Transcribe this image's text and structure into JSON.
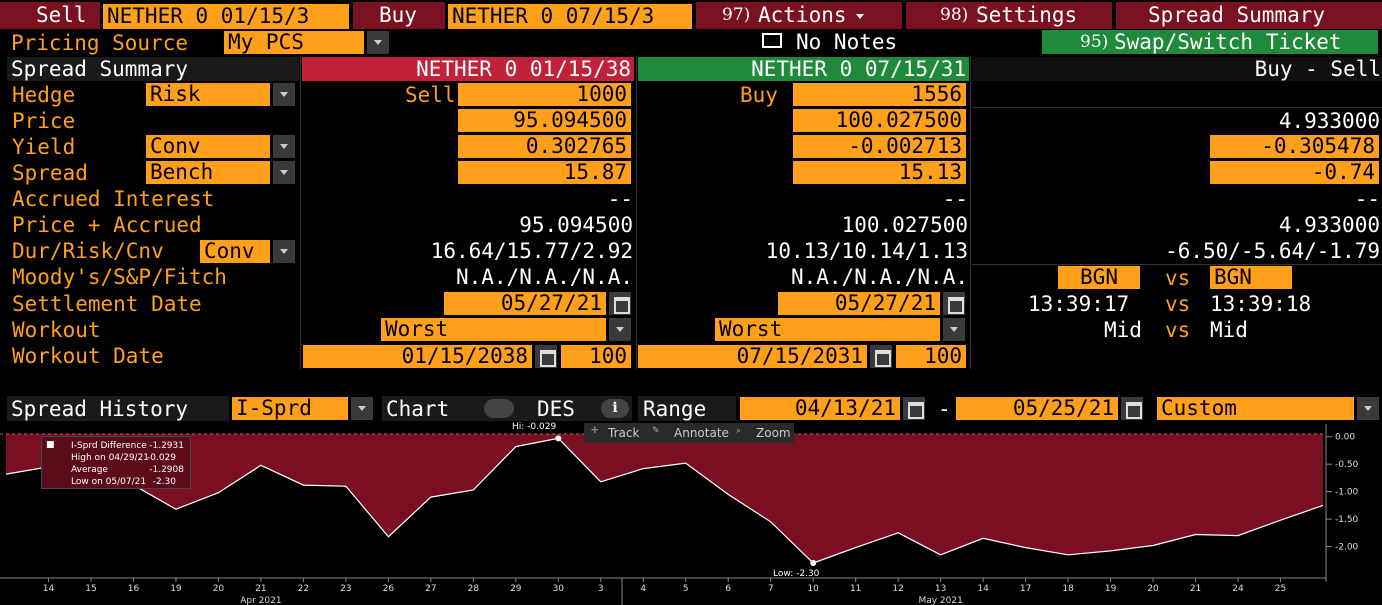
{
  "toolbar": {
    "sell_label": "Sell",
    "sell_security": "NETHER 0 01/15/3",
    "buy_label": "Buy",
    "buy_security": "NETHER 0 07/15/3",
    "actions_num": "97)",
    "actions_label": "Actions",
    "settings_num": "98)",
    "settings_label": "Settings",
    "spread_summary_label": "Spread Summary"
  },
  "row2": {
    "pricing_source_label": "Pricing Source",
    "pricing_source_value": "My PCS",
    "notes_label": "No Notes",
    "swap_num": "95)",
    "swap_label": "Swap/Switch Ticket"
  },
  "grid": {
    "title": "Spread Summary",
    "leg1_header": "NETHER 0 01/15/38",
    "leg2_header": "NETHER 0 07/15/31",
    "diff_header": "Buy - Sell",
    "hedge_label": "Hedge",
    "hedge_value": "Risk",
    "price_label": "Price",
    "yield_label": "Yield",
    "yield_value": "Conv",
    "spread_label": "Spread",
    "spread_value": "Bench",
    "accrued_label": "Accrued Interest",
    "price_accrued_label": "Price + Accrued",
    "dur_label": "Dur/Risk/Cnv",
    "dur_value": "Conv",
    "ratings_label": "Moody's/S&P/Fitch",
    "settle_label": "Settlement Date",
    "workout_label": "Workout",
    "workout_date_label": "Workout Date",
    "leg1": {
      "side": "Sell",
      "qty": "1000",
      "price": "95.094500",
      "yield": "0.302765",
      "spread": "15.87",
      "accrued": "--",
      "price_accrued": "95.094500",
      "dur": "16.64/15.77/2.92",
      "ratings": "N.A./N.A./N.A.",
      "settle": "05/27/21",
      "workout": "Worst",
      "workout_date": "01/15/2038",
      "workout_price": "100"
    },
    "leg2": {
      "side": "Buy",
      "qty": "1556",
      "price": "100.027500",
      "yield": "-0.002713",
      "spread": "15.13",
      "accrued": "--",
      "price_accrued": "100.027500",
      "dur": "10.13/10.14/1.13",
      "ratings": "N.A./N.A./N.A.",
      "settle": "05/27/21",
      "workout": "Worst",
      "workout_date": "07/15/2031",
      "workout_price": "100"
    },
    "diff": {
      "price": "4.933000",
      "yield": "-0.305478",
      "spread": "-0.74",
      "accrued": "--",
      "price_accrued": "4.933000",
      "dur": "-6.50/-5.64/-1.79",
      "src1": "BGN",
      "vs": "vs",
      "src2": "BGN",
      "time1": "13:39:17",
      "time2": "13:39:18",
      "mid1": "Mid",
      "mid2": "Mid"
    }
  },
  "history": {
    "label": "Spread History",
    "type": "I-Sprd",
    "chart_label": "Chart",
    "des_label": "DES",
    "range_label": "Range",
    "from": "04/13/21",
    "dash": "-",
    "to": "05/25/21",
    "period": "Custom",
    "track": "Track",
    "annotate": "Annotate",
    "zoom": "Zoom",
    "legend": {
      "l1": "I-Sprd Difference",
      "v1": "-1.2931",
      "l2": "High on 04/29/21",
      "v2": "-0.029",
      "l3": "Average",
      "v3": "-1.2908",
      "l4": "Low on 05/07/21",
      "v4": "-2.30"
    },
    "hi_label": "Hi: -0.029",
    "low_label": "Low: -2.30"
  },
  "chart_data": {
    "type": "area",
    "x": [
      "4/12",
      "4/13",
      "4/14",
      "4/15",
      "4/16",
      "4/19",
      "4/20",
      "4/21",
      "4/22",
      "4/23",
      "4/26",
      "4/27",
      "4/28",
      "4/29",
      "4/30",
      "5/3",
      "5/4",
      "5/5",
      "5/6",
      "5/7",
      "5/10",
      "5/11",
      "5/12",
      "5/13",
      "5/14",
      "5/17",
      "5/18",
      "5/19",
      "5/20",
      "5/21",
      "5/24",
      "5/25"
    ],
    "y": [
      -0.68,
      -0.55,
      -0.82,
      -0.88,
      -1.32,
      -1.02,
      -0.52,
      -0.88,
      -0.9,
      -1.82,
      -1.1,
      -0.97,
      -0.18,
      -0.029,
      -0.82,
      -0.58,
      -0.48,
      -1.05,
      -1.55,
      -2.3,
      -2.02,
      -1.75,
      -2.15,
      -1.85,
      -2.02,
      -2.15,
      -2.08,
      -1.98,
      -1.78,
      -1.8,
      -1.52,
      -1.25
    ],
    "tick_labels": [
      "14",
      "15",
      "16",
      "19",
      "20",
      "21",
      "22",
      "23",
      "26",
      "27",
      "28",
      "29",
      "30",
      "3",
      "4",
      "5",
      "6",
      "7",
      "10",
      "11",
      "12",
      "13",
      "14",
      "17",
      "18",
      "19",
      "20",
      "21",
      "24",
      "25"
    ],
    "month_labels": [
      "Apr 2021",
      "May 2021"
    ],
    "y_ticks": [
      "0.00",
      "-0.50",
      "-1.00",
      "-1.50",
      "-2.00"
    ],
    "ylim": [
      -2.5,
      0.05
    ],
    "colors": {
      "fill": "#7a0f22",
      "line": "#ffffff",
      "marker": "#ffffff"
    }
  },
  "colors": {
    "accent": "#ff9f1a",
    "sell": "#c0223a",
    "buy": "#1f8a3a",
    "button": "#7a1222"
  }
}
